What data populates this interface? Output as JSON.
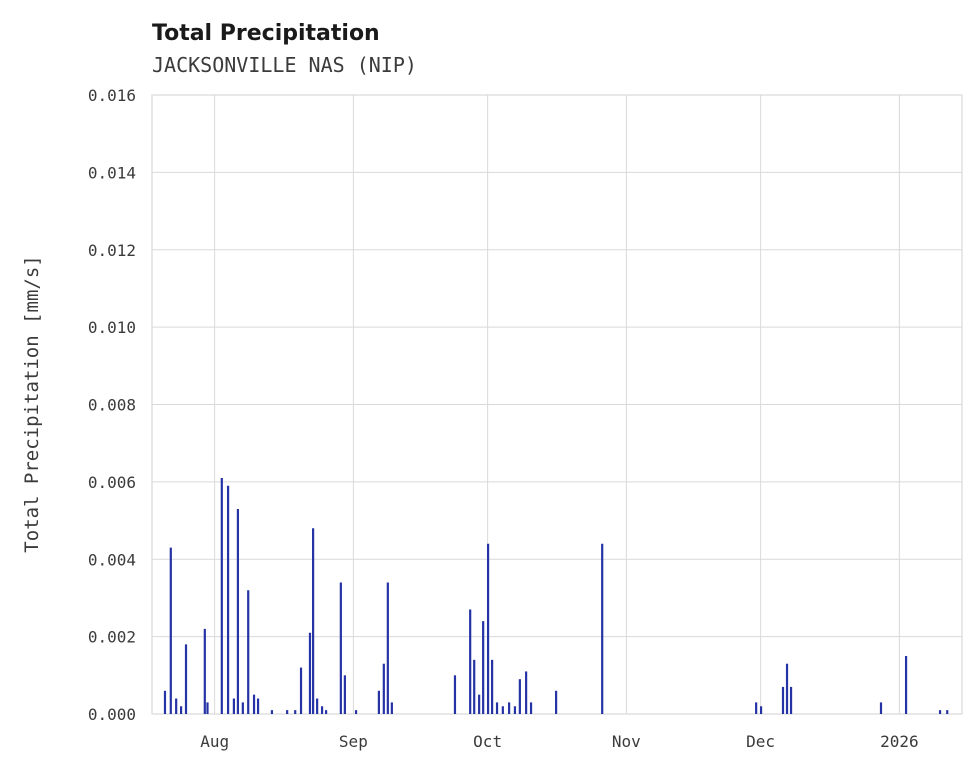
{
  "chart_data": {
    "type": "line",
    "title": "Total Precipitation",
    "subtitle": "JACKSONVILLE NAS (NIP)",
    "ylabel": "Total Precipitation [mm/s]",
    "xlabel": "",
    "ylim": [
      0,
      0.016
    ],
    "yticks": [
      0,
      0.002,
      0.004,
      0.006,
      0.008,
      0.01,
      0.012,
      0.014,
      0.016
    ],
    "ytick_format_decimals": 3,
    "xlim": [
      0,
      181
    ],
    "x_unit": "days",
    "xticks": [
      {
        "day": 14,
        "label": "Aug"
      },
      {
        "day": 45,
        "label": "Sep"
      },
      {
        "day": 75,
        "label": "Oct"
      },
      {
        "day": 106,
        "label": "Nov"
      },
      {
        "day": 136,
        "label": "Dec"
      },
      {
        "day": 167,
        "label": "2026"
      }
    ],
    "grid": true,
    "legend_position": "none",
    "line_color": "#2633a5",
    "grid_color": "#d9d9d9",
    "text_color": "#3b3b3b",
    "title_color": "#1a1a1a",
    "points": [
      [
        2.9,
        0.0006
      ],
      [
        4.2,
        0.0043
      ],
      [
        5.4,
        0.0004
      ],
      [
        6.5,
        0.0002
      ],
      [
        7.6,
        0.0018
      ],
      [
        11.8,
        0.0022
      ],
      [
        12.4,
        0.0003
      ],
      [
        15.6,
        0.0061
      ],
      [
        17.0,
        0.0059
      ],
      [
        18.3,
        0.0004
      ],
      [
        19.2,
        0.0053
      ],
      [
        20.3,
        0.0003
      ],
      [
        21.5,
        0.0032
      ],
      [
        22.8,
        0.0005
      ],
      [
        23.7,
        0.0004
      ],
      [
        26.8,
        0.0001
      ],
      [
        30.2,
        0.0001
      ],
      [
        32.0,
        0.0001
      ],
      [
        33.3,
        0.0012
      ],
      [
        35.3,
        0.0021
      ],
      [
        36.0,
        0.0048
      ],
      [
        36.9,
        0.0004
      ],
      [
        38.0,
        0.0002
      ],
      [
        38.9,
        0.0001
      ],
      [
        42.2,
        0.0034
      ],
      [
        43.1,
        0.001
      ],
      [
        45.6,
        0.0001
      ],
      [
        50.7,
        0.0006
      ],
      [
        51.8,
        0.0013
      ],
      [
        52.7,
        0.0034
      ],
      [
        53.6,
        0.0003
      ],
      [
        67.7,
        0.001
      ],
      [
        71.1,
        0.0027
      ],
      [
        72.0,
        0.0014
      ],
      [
        73.1,
        0.0005
      ],
      [
        74.0,
        0.0024
      ],
      [
        75.1,
        0.0044
      ],
      [
        76.0,
        0.0014
      ],
      [
        77.1,
        0.0003
      ],
      [
        78.4,
        0.0002
      ],
      [
        79.8,
        0.0003
      ],
      [
        81.1,
        0.0002
      ],
      [
        82.2,
        0.0009
      ],
      [
        83.6,
        0.0011
      ],
      [
        84.7,
        0.0003
      ],
      [
        90.3,
        0.0006
      ],
      [
        100.6,
        0.0044
      ],
      [
        135.0,
        0.0003
      ],
      [
        136.1,
        0.0002
      ],
      [
        141.0,
        0.0007
      ],
      [
        141.9,
        0.0013
      ],
      [
        142.8,
        0.0007
      ],
      [
        162.9,
        0.0003
      ],
      [
        168.5,
        0.0015
      ],
      [
        176.1,
        0.0001
      ],
      [
        177.7,
        0.0001
      ]
    ]
  }
}
